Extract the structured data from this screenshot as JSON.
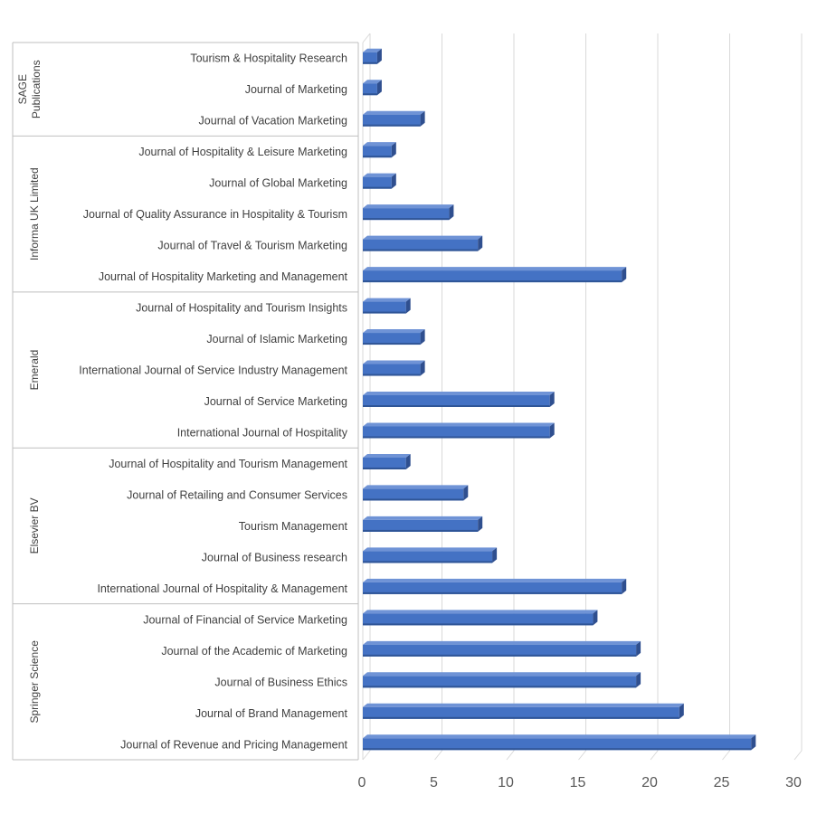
{
  "chart_data": {
    "type": "bar",
    "orientation": "horizontal",
    "title": "",
    "xlabel": "",
    "ylabel": "",
    "xlim": [
      0,
      30
    ],
    "xticks": [
      0,
      5,
      10,
      15,
      20,
      25,
      30
    ],
    "grid": true,
    "bar_color": "#4472C4",
    "groups": [
      {
        "name": "SAGE Publications",
        "items": [
          {
            "label": "Tourism & Hospitality Research",
            "value": 1
          },
          {
            "label": "Journal of Marketing",
            "value": 1
          },
          {
            "label": "Journal of Vacation Marketing",
            "value": 4
          }
        ]
      },
      {
        "name": "Informa UK Limited",
        "items": [
          {
            "label": "Journal of Hospitality & Leisure Marketing",
            "value": 2
          },
          {
            "label": "Journal of Global Marketing",
            "value": 2
          },
          {
            "label": "Journal of Quality Assurance in Hospitality & Tourism",
            "value": 6
          },
          {
            "label": "Journal of Travel & Tourism Marketing",
            "value": 8
          },
          {
            "label": "Journal of Hospitality Marketing and Management",
            "value": 18
          }
        ]
      },
      {
        "name": "Emerald",
        "items": [
          {
            "label": "Journal of Hospitality and Tourism Insights",
            "value": 3
          },
          {
            "label": "Journal of Islamic Marketing",
            "value": 4
          },
          {
            "label": "International Journal of Service Industry Management",
            "value": 4
          },
          {
            "label": "Journal of Service Marketing",
            "value": 13
          },
          {
            "label": "International Journal of Hospitality",
            "value": 13
          }
        ]
      },
      {
        "name": "Elsevier BV",
        "items": [
          {
            "label": "Journal of Hospitality and Tourism Management",
            "value": 3
          },
          {
            "label": "Journal of Retailing and Consumer Services",
            "value": 7
          },
          {
            "label": "Tourism Management",
            "value": 8
          },
          {
            "label": "Journal of Business research",
            "value": 9
          },
          {
            "label": "International Journal of Hospitality & Management",
            "value": 18
          }
        ]
      },
      {
        "name": "Springer Science",
        "items": [
          {
            "label": "Journal of Financial of Service Marketing",
            "value": 16
          },
          {
            "label": "Journal of the Academic of Marketing",
            "value": 19
          },
          {
            "label": "Journal of Business Ethics",
            "value": 19
          },
          {
            "label": "Journal of Brand Management",
            "value": 22
          },
          {
            "label": "Journal of Revenue and Pricing Management",
            "value": 27
          }
        ]
      }
    ]
  }
}
